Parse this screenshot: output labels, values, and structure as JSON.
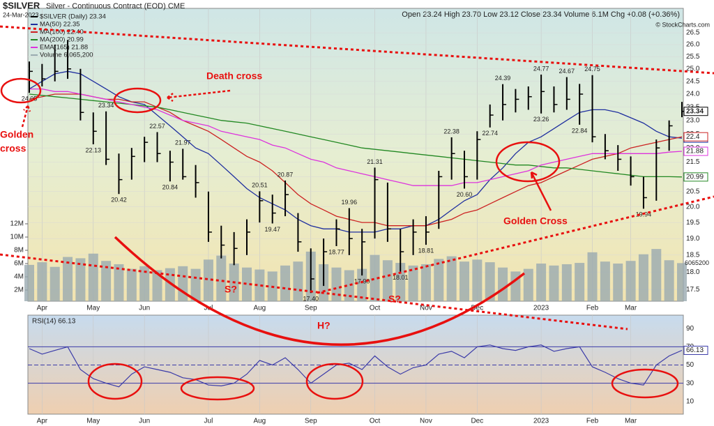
{
  "header": {
    "symbol": "$SILVER",
    "name": "Silver - Continuous Contract (EOD) CME",
    "date": "24-Mar-2023",
    "quote": "Open 23.24  High 23.70  Low 23.12  Close 23.34  Volume 6.1M  Chg +0.08 (+0.36%)",
    "copyright": "© StockCharts.com"
  },
  "chart_data": [
    {
      "type": "hlc",
      "log_scale": true,
      "grid": true,
      "categories": [
        null,
        "Apr",
        null,
        null,
        null,
        "May",
        null,
        null,
        null,
        "Jun",
        null,
        null,
        null,
        null,
        "Jul",
        null,
        null,
        null,
        "Aug",
        null,
        null,
        null,
        "Sep",
        null,
        null,
        null,
        null,
        "Oct",
        null,
        null,
        null,
        "Nov",
        null,
        null,
        null,
        "Dec",
        null,
        null,
        null,
        null,
        "2023",
        null,
        null,
        null,
        "Feb",
        null,
        null,
        "Mar",
        null,
        null,
        null,
        null
      ],
      "ylim": [
        17.17,
        27.57
      ],
      "yticks": [
        17.5,
        {
          "value": 18,
          "label": "18.0"
        },
        18.5,
        {
          "value": 19,
          "label": "19.0"
        },
        19.5,
        {
          "value": 20,
          "label": "20.0"
        },
        20.5,
        {
          "value": 21,
          "label": "21.0"
        },
        21.5,
        {
          "value": 22,
          "label": "22.0"
        },
        22.5,
        {
          "value": 23,
          "label": "23.0"
        },
        23.5,
        {
          "value": 24,
          "label": "24.0"
        },
        24.5,
        {
          "value": 25,
          "label": "25.0"
        },
        25.5,
        {
          "value": 26,
          "label": "26.0"
        },
        26.5
      ],
      "y2lim": [
        316000,
        44530000
      ],
      "y2ticks": [
        {
          "value": 2000000,
          "label": "2M"
        },
        {
          "value": 4000000,
          "label": "4M"
        },
        {
          "value": 6000000,
          "label": "6M"
        },
        {
          "value": 8000000,
          "label": "8M"
        },
        {
          "value": 10000000,
          "label": "10M"
        },
        {
          "value": 12000000,
          "label": "12M"
        }
      ],
      "price": {
        "name": "$SILVER (Daily) 23.34",
        "color": "#000000",
        "high": [
          25.3,
          25.2,
          26.0,
          26.2,
          25.0,
          23.3,
          23.34,
          21.8,
          22.0,
          22.4,
          22.57,
          21.9,
          21.97,
          21.4,
          20.5,
          19.4,
          19.2,
          19.6,
          20.51,
          20.4,
          20.87,
          19.8,
          18.7,
          19.0,
          19.6,
          19.96,
          19.3,
          21.31,
          20.8,
          19.3,
          19.6,
          19.7,
          21.2,
          22.38,
          21.9,
          22.6,
          23.6,
          24.39,
          24.2,
          24.3,
          24.77,
          24.3,
          24.67,
          24.4,
          24.75,
          22.5,
          22.1,
          21.7,
          21.0,
          22.3,
          23.0,
          23.7
        ],
        "low": [
          24.05,
          24.3,
          24.5,
          24.6,
          23.0,
          22.13,
          21.4,
          20.42,
          20.9,
          21.5,
          21.5,
          20.84,
          20.9,
          20.3,
          18.9,
          18.4,
          18.2,
          18.5,
          19.5,
          19.47,
          19.7,
          18.6,
          17.4,
          17.6,
          18.77,
          18.5,
          17.9,
          19.0,
          18.9,
          18.01,
          18.5,
          18.81,
          19.3,
          20.9,
          20.6,
          20.9,
          22.74,
          23.0,
          23.3,
          23.4,
          23.26,
          23.3,
          23.4,
          22.84,
          22.2,
          21.6,
          21.2,
          20.7,
          19.94,
          20.2,
          21.9,
          23.12
        ],
        "close": [
          24.9,
          24.6,
          24.9,
          25.0,
          23.3,
          22.6,
          21.6,
          20.9,
          21.7,
          22.2,
          21.8,
          21.5,
          21.0,
          20.8,
          19.2,
          18.8,
          18.7,
          19.2,
          20.2,
          19.8,
          20.4,
          18.9,
          17.8,
          18.6,
          19.3,
          19.0,
          18.9,
          20.9,
          19.3,
          18.6,
          19.2,
          19.2,
          21.0,
          21.8,
          21.0,
          22.3,
          23.2,
          23.6,
          23.8,
          23.9,
          24.1,
          23.6,
          23.8,
          24.0,
          22.4,
          21.9,
          21.6,
          21.0,
          20.3,
          22.0,
          22.8,
          23.34
        ],
        "high_labels": [
          null,
          null,
          null,
          null,
          null,
          null,
          "23.34",
          null,
          null,
          null,
          "22.57",
          null,
          "21.97",
          null,
          null,
          null,
          null,
          null,
          "20.51",
          null,
          "20.87",
          null,
          null,
          null,
          null,
          "19.96",
          null,
          "21.31",
          null,
          null,
          null,
          null,
          null,
          "22.38",
          null,
          null,
          null,
          "24.39",
          null,
          null,
          "24.77",
          null,
          "24.67",
          null,
          "24.75",
          null,
          null,
          null,
          null,
          null,
          null,
          null
        ],
        "low_labels": [
          "24.05",
          null,
          null,
          null,
          null,
          "22.13",
          null,
          "20.42",
          null,
          null,
          null,
          "20.84",
          null,
          null,
          null,
          null,
          null,
          null,
          null,
          "19.47",
          null,
          null,
          "17.40",
          null,
          "18.77",
          null,
          "17.90",
          null,
          null,
          "18.01",
          null,
          "18.81",
          null,
          null,
          "20.60",
          null,
          "22.74",
          null,
          null,
          null,
          "23.26",
          null,
          null,
          "22.84",
          null,
          null,
          null,
          null,
          "19.94",
          null,
          null,
          null
        ]
      },
      "series": [
        {
          "name": "MA(50) 22.35",
          "color": "#1f2f9f",
          "values": [
            24.2,
            24.5,
            24.8,
            24.9,
            24.8,
            24.5,
            24.2,
            23.9,
            23.7,
            23.6,
            23.2,
            22.8,
            22.4,
            22.0,
            21.8,
            21.4,
            21.0,
            20.6,
            20.3,
            20.1,
            19.9,
            19.6,
            19.4,
            19.3,
            19.3,
            19.2,
            19.2,
            19.2,
            19.3,
            19.3,
            19.4,
            19.4,
            19.6,
            19.9,
            20.2,
            20.4,
            20.9,
            21.3,
            21.8,
            22.2,
            22.4,
            22.7,
            23.0,
            23.3,
            23.4,
            23.4,
            23.3,
            23.1,
            22.9,
            22.6,
            22.4,
            22.35
          ]
        },
        {
          "name": "MA(100) 22.40",
          "color": "#cc2222",
          "values": [
            23.8,
            23.9,
            24.0,
            24.0,
            24.0,
            23.9,
            23.8,
            23.8,
            23.7,
            23.7,
            23.5,
            23.3,
            23.0,
            22.8,
            22.6,
            22.3,
            22.0,
            21.7,
            21.5,
            21.2,
            20.8,
            20.4,
            20.1,
            19.9,
            19.7,
            19.6,
            19.5,
            19.5,
            19.4,
            19.4,
            19.4,
            19.4,
            19.5,
            19.6,
            19.8,
            19.9,
            20.1,
            20.3,
            20.5,
            20.7,
            20.8,
            21.0,
            21.2,
            21.4,
            21.6,
            21.7,
            21.8,
            22.0,
            22.1,
            22.2,
            22.3,
            22.4
          ]
        },
        {
          "name": "MA(200) 20.99",
          "color": "#228822",
          "values": [
            24.0,
            23.95,
            23.9,
            23.85,
            23.8,
            23.75,
            23.7,
            23.65,
            23.6,
            23.55,
            23.5,
            23.4,
            23.3,
            23.2,
            23.1,
            23.0,
            22.95,
            22.9,
            22.8,
            22.7,
            22.6,
            22.5,
            22.4,
            22.3,
            22.2,
            22.1,
            22.0,
            21.95,
            21.9,
            21.85,
            21.8,
            21.75,
            21.7,
            21.65,
            21.6,
            21.55,
            21.5,
            21.45,
            21.4,
            21.4,
            21.35,
            21.3,
            21.3,
            21.25,
            21.2,
            21.15,
            21.1,
            21.05,
            21.0,
            21.0,
            21.0,
            20.99
          ]
        },
        {
          "name": "EMA(165) 21.88",
          "color": "#dd33dd",
          "values": [
            24.2,
            24.2,
            24.1,
            24.1,
            24.0,
            23.9,
            23.8,
            23.7,
            23.6,
            23.5,
            23.4,
            23.2,
            23.0,
            22.9,
            22.8,
            22.6,
            22.5,
            22.4,
            22.3,
            22.1,
            22.0,
            21.8,
            21.6,
            21.5,
            21.3,
            21.2,
            21.1,
            21.0,
            20.9,
            20.8,
            20.7,
            20.7,
            20.7,
            20.7,
            20.8,
            20.8,
            20.9,
            21.0,
            21.1,
            21.2,
            21.4,
            21.5,
            21.6,
            21.7,
            21.8,
            21.8,
            21.8,
            21.8,
            21.8,
            21.8,
            21.85,
            21.88
          ]
        }
      ],
      "volume": {
        "name": "Volume 6,065,200",
        "color": "#9aaab0",
        "axis": "y2",
        "values": [
          5800000,
          6200000,
          5500000,
          7000000,
          6800000,
          7500000,
          6400000,
          5900000,
          5200000,
          5600000,
          5000000,
          5300000,
          5600000,
          5200000,
          6600000,
          7200000,
          6000000,
          5400000,
          5100000,
          4800000,
          5700000,
          6300000,
          7800000,
          5900000,
          5400000,
          5000000,
          5200000,
          7300000,
          6500000,
          6100000,
          5700000,
          5900000,
          6700000,
          7100000,
          6300000,
          6600000,
          6200000,
          5400000,
          4800000,
          5200000,
          6000000,
          5700000,
          5900000,
          6100000,
          7700000,
          6300000,
          6000000,
          6400000,
          7400000,
          8200000,
          6500000,
          6065200
        ]
      },
      "annotations": [
        "Death cross",
        "Golden",
        "cross",
        "Golden Cross",
        "S?",
        "S?",
        "H?"
      ]
    },
    {
      "type": "line",
      "title": "RSI(14) 66.13",
      "color": "#3a3aa8",
      "values": [
        68,
        62,
        66,
        70,
        45,
        35,
        30,
        26,
        40,
        48,
        45,
        42,
        36,
        34,
        28,
        27,
        30,
        40,
        55,
        50,
        58,
        45,
        30,
        40,
        50,
        52,
        45,
        60,
        48,
        40,
        47,
        50,
        62,
        65,
        58,
        70,
        72,
        68,
        66,
        70,
        72,
        65,
        68,
        70,
        48,
        42,
        35,
        30,
        28,
        50,
        60,
        66.13
      ],
      "ylim": [
        -4,
        104.8
      ],
      "yticks": [
        10,
        30,
        50,
        70,
        90
      ],
      "levels": [
        70,
        50,
        30
      ]
    }
  ]
}
